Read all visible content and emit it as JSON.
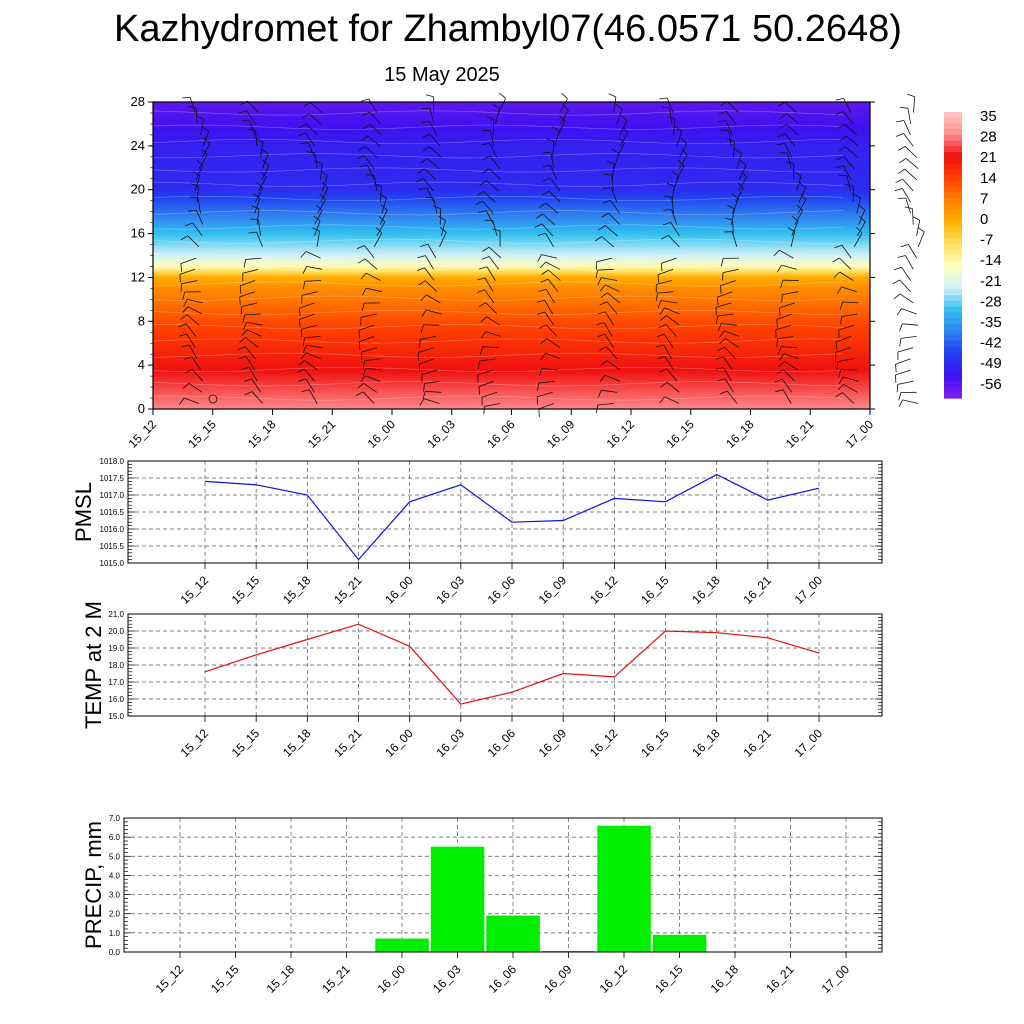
{
  "header": {
    "title": "Kazhydromet for Zhambyl07(46.0571 50.2648)",
    "date": "15 May 2025"
  },
  "colors": {
    "pmsl_line": "#1010e0",
    "temp_line": "#e01010",
    "precip_bar": "#00ee00"
  },
  "chart_data": [
    {
      "type": "heatmap",
      "title": "",
      "xlabel": "",
      "ylabel": "",
      "x": [
        "15_12",
        "15_15",
        "15_18",
        "15_21",
        "16_00",
        "16_03",
        "16_06",
        "16_09",
        "16_12",
        "16_15",
        "16_18",
        "16_21",
        "17_00"
      ],
      "yticks": [
        0,
        4,
        8,
        12,
        16,
        20,
        24,
        28
      ],
      "ylim": [
        0,
        28
      ],
      "grid": false,
      "colorbar": {
        "labels": [
          "35",
          "28",
          "21",
          "14",
          "7",
          "0",
          "-7",
          "-14",
          "-21",
          "-28",
          "-35",
          "-42",
          "-49",
          "-56"
        ],
        "range": [
          -60,
          38
        ],
        "colors": [
          "#8020f0",
          "#4010f0",
          "#2040f0",
          "#3080f0",
          "#30c0f0",
          "#d0f0f8",
          "#ffffc0",
          "#ffe060",
          "#ffb000",
          "#ff8000",
          "#ff4000",
          "#f01010",
          "#ff9090",
          "#ffc8c8"
        ]
      },
      "profile": {
        "heights": [
          0,
          4,
          8,
          11,
          12,
          13,
          14,
          16,
          20,
          24,
          28
        ],
        "values": [
          30,
          22,
          14,
          6,
          1,
          -14,
          -22,
          -30,
          -48,
          -50,
          -56
        ]
      },
      "overlay": "wind barbs"
    },
    {
      "type": "line",
      "ylabel": "PMSL",
      "x": [
        "15_12",
        "15_15",
        "15_18",
        "15_21",
        "16_00",
        "16_03",
        "16_06",
        "16_09",
        "16_12",
        "16_15",
        "16_18",
        "16_21",
        "17_00"
      ],
      "yticks": [
        "1015.0",
        "1015.5",
        "1016.0",
        "1016.5",
        "1017.0",
        "1017.5",
        "1018.0"
      ],
      "ylim": [
        1015.0,
        1018.0
      ],
      "grid": true,
      "series": [
        {
          "values": [
            1017.4,
            1017.3,
            1017.0,
            1015.1,
            1016.8,
            1017.3,
            1016.2,
            1016.25,
            1016.9,
            1016.8,
            1017.6,
            1016.85,
            1017.2
          ]
        }
      ]
    },
    {
      "type": "line",
      "ylabel": "TEMP at 2 M",
      "x": [
        "15_12",
        "15_15",
        "15_18",
        "15_21",
        "16_00",
        "16_03",
        "16_06",
        "16_09",
        "16_12",
        "16_15",
        "16_18",
        "16_21",
        "17_00"
      ],
      "yticks": [
        "15.0",
        "16.0",
        "17.0",
        "18.0",
        "19.0",
        "20.0",
        "21.0"
      ],
      "ylim": [
        15.0,
        21.0
      ],
      "grid": true,
      "series": [
        {
          "values": [
            17.6,
            18.6,
            19.5,
            20.4,
            19.1,
            15.7,
            16.4,
            17.5,
            17.3,
            20.0,
            19.9,
            19.6,
            18.7
          ]
        }
      ]
    },
    {
      "type": "bar",
      "ylabel": "PRECIP, mm",
      "categories": [
        "15_12",
        "15_15",
        "15_18",
        "15_21",
        "16_00",
        "16_03",
        "16_06",
        "16_09",
        "16_12",
        "16_15",
        "16_18",
        "16_21",
        "17_00"
      ],
      "yticks": [
        "0.0",
        "1.0",
        "2.0",
        "3.0",
        "4.0",
        "5.0",
        "6.0",
        "7.0"
      ],
      "ylim": [
        0,
        7.0
      ],
      "grid": true,
      "values": [
        0,
        0,
        0,
        0,
        0.7,
        5.5,
        1.9,
        0.05,
        6.6,
        0.9,
        0,
        0,
        0
      ]
    }
  ]
}
